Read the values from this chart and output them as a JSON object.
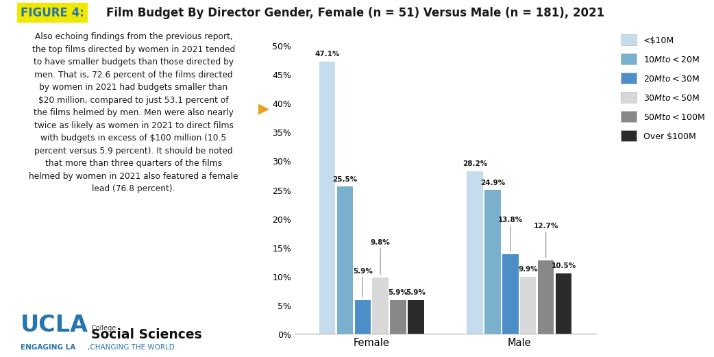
{
  "title_label": "FIGURE 4:",
  "title_text": "Film Budget By Director Gender, Female (n = 51) Versus Male (n = 181), 2021",
  "categories": [
    "Female",
    "Male"
  ],
  "budget_labels": [
    "<$10M",
    "$10M to <$20M",
    "$20M to <$30M",
    "$30M to <$50M",
    "$50M to <$100M",
    "Over $100M"
  ],
  "female_values": [
    47.1,
    25.5,
    5.9,
    9.8,
    5.9,
    5.9
  ],
  "male_values": [
    28.2,
    24.9,
    13.8,
    9.9,
    12.7,
    10.5
  ],
  "bar_colors": [
    "#c5dced",
    "#7aafce",
    "#4b8ec8",
    "#d8d8d8",
    "#888888",
    "#2b2b2b"
  ],
  "ylim": [
    0,
    52
  ],
  "yticks": [
    0,
    5,
    10,
    15,
    20,
    25,
    30,
    35,
    40,
    45,
    50
  ],
  "body_text": "Also echoing findings from the previous report,\nthe top films directed by women in 2021 tended\nto have smaller budgets than those directed by\nmen. That is, 72.6 percent of the films directed\nby women in 2021 had budgets smaller than\n$20 million, compared to just 53.1 percent of\nthe films helmed by men. Men were also nearly\ntwice as likely as women in 2021 to direct films\nwith budgets in excess of $100 million (10.5\npercent versus 5.9 percent). It should be noted\nthat more than three quarters of the films\nhelmed by women in 2021 also featured a female\nlead (76.8 percent).",
  "ucla_blue": "#2774AE",
  "title_bg_color": "#f0e800",
  "title_label_color": "#2774AE",
  "background_color": "#ffffff"
}
